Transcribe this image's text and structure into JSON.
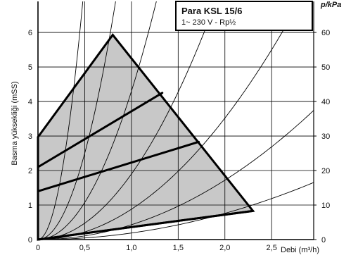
{
  "chart_data": {
    "type": "line",
    "legend": {
      "title": "Para KSL 15/6",
      "subtitle": "1~ 230 V - Rp½"
    },
    "xlabel": "Debi (m³/h)",
    "ylabel": "Basma yüksekliği (mSS)",
    "y2label": "p/kPa",
    "xlim": [
      0,
      2.95
    ],
    "ylim": [
      0,
      6.9
    ],
    "y2lim": [
      0,
      69
    ],
    "x_ticks": [
      "0",
      "0,5",
      "1,0",
      "1,5",
      "2,0",
      "2,5"
    ],
    "x_tick_values": [
      0,
      0.5,
      1.0,
      1.5,
      2.0,
      2.5
    ],
    "y_ticks": [
      "0",
      "1",
      "2",
      "3",
      "4",
      "5",
      "6"
    ],
    "y_tick_values": [
      0,
      1,
      2,
      3,
      4,
      5,
      6
    ],
    "y2_ticks": [
      "0",
      "10",
      "20",
      "30",
      "40",
      "50",
      "60"
    ],
    "y2_tick_values": [
      0,
      10,
      20,
      30,
      40,
      50,
      60
    ],
    "grid": true,
    "operating_area": {
      "fill": "#c8c8c8",
      "polygon": [
        [
          0,
          0
        ],
        [
          0,
          2.97
        ],
        [
          0.8,
          5.93
        ],
        [
          2.3,
          0.83
        ]
      ]
    },
    "speed_curves": [
      [
        [
          0,
          2.1
        ],
        [
          1.33,
          4.25
        ]
      ],
      [
        [
          0,
          1.4
        ],
        [
          1.72,
          2.83
        ]
      ],
      [
        [
          0,
          0
        ],
        [
          2.3,
          0.83
        ]
      ]
    ],
    "system_curves_k": [
      30,
      10,
      4.3,
      1.9,
      0.88,
      0.43,
      0.19
    ]
  }
}
